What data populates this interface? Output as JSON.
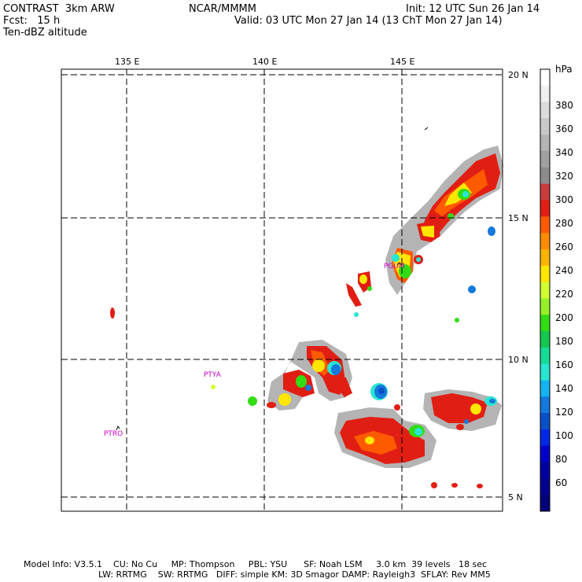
{
  "header": {
    "model_line": "CONTRAST  3km ARW",
    "fcst_line": "Fcst:   15 h",
    "field_name": "Ten-dBZ altitude",
    "center": "NCAR/MMMM",
    "init": "Init: 12 UTC Sun 26 Jan 14",
    "valid": "Valid: 03 UTC Mon 27 Jan 14 (13 ChT Mon 27 Jan 14)"
  },
  "map": {
    "lon_labels": [
      "135 E",
      "140 E",
      "145 E"
    ],
    "lat_labels": [
      "20 N",
      "15 N",
      "10 N",
      "5 N"
    ],
    "stations": [
      "PTYA",
      "PTRO",
      "PGUM"
    ]
  },
  "colorbar": {
    "unit": "hPa",
    "labels": [
      "380",
      "360",
      "340",
      "320",
      "300",
      "280",
      "260",
      "240",
      "220",
      "200",
      "180",
      "160",
      "140",
      "120",
      "100",
      "80",
      "60"
    ],
    "colors": [
      "#ffffff",
      "#f0f0f0",
      "#dcdcdc",
      "#c8c8c8",
      "#b4b4b4",
      "#a0a0a0",
      "#8c8c8c",
      "#c83c3c",
      "#e11e14",
      "#ff5a00",
      "#ff8c00",
      "#ffb400",
      "#ffe600",
      "#d2ff32",
      "#96f028",
      "#32dc14",
      "#14c850",
      "#14dc96",
      "#28e6d2",
      "#14b4f0",
      "#1478dc",
      "#0a50c8",
      "#0028e6",
      "#0000c8",
      "#0000a0",
      "#00008c",
      "#000078"
    ]
  },
  "footer": {
    "line1": "Model Info: V3.5.1    CU: No Cu     MP: Thompson     PBL: YSU      SF: Noah LSM     3.0 km  39 levels   18 sec",
    "line2": "LW: RRTMG    SW: RRTMG   DIFF: simple KM: 3D Smagor DAMP: Rayleigh3  SFLAY: Rev MM5"
  }
}
